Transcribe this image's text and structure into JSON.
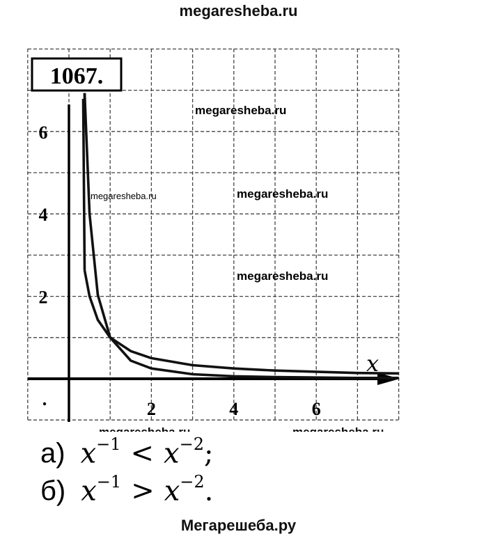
{
  "watermarks": {
    "top": "megaresheba.ru",
    "bottom": "Мегарешеба.ру",
    "in_chart": [
      "megaresheba.ru",
      "megaresheba.ru",
      "megaresheba.ru",
      "megaresheba.ru",
      "megaresheba.ru",
      "megaresheba.ru"
    ]
  },
  "problem_number": "1067.",
  "answers": [
    {
      "label": "а)",
      "lhs_base": "x",
      "lhs_exp": "−1",
      "op": "<",
      "rhs_base": "x",
      "rhs_exp": "−2",
      "end": ";"
    },
    {
      "label": "б)",
      "lhs_base": "x",
      "lhs_exp": "−1",
      "op": ">",
      "rhs_base": "x",
      "rhs_exp": "−2",
      "end": "."
    }
  ],
  "chart_data": {
    "type": "line",
    "title": "",
    "xlabel": "x",
    "ylabel": "",
    "xlim": [
      0,
      8
    ],
    "ylim": [
      0,
      7
    ],
    "x_ticks": [
      "2",
      "4",
      "6"
    ],
    "y_ticks": [
      "2",
      "4",
      "6"
    ],
    "grid": true,
    "series": [
      {
        "x": [
          0.38,
          0.5,
          0.7,
          1,
          1.5,
          2,
          3,
          4,
          5,
          6,
          7,
          8
        ],
        "y": [
          2.63,
          2,
          1.43,
          1,
          0.67,
          0.5,
          0.33,
          0.25,
          0.2,
          0.17,
          0.14,
          0.13
        ],
        "color": "#111111"
      },
      {
        "x": [
          0.38,
          0.5,
          0.7,
          1,
          1.5,
          2,
          3,
          4,
          5,
          6,
          7,
          8
        ],
        "y": [
          6.93,
          4,
          2.04,
          1,
          0.44,
          0.25,
          0.11,
          0.06,
          0.04,
          0.03,
          0.02,
          0.02
        ],
        "color": "#111111"
      }
    ]
  }
}
